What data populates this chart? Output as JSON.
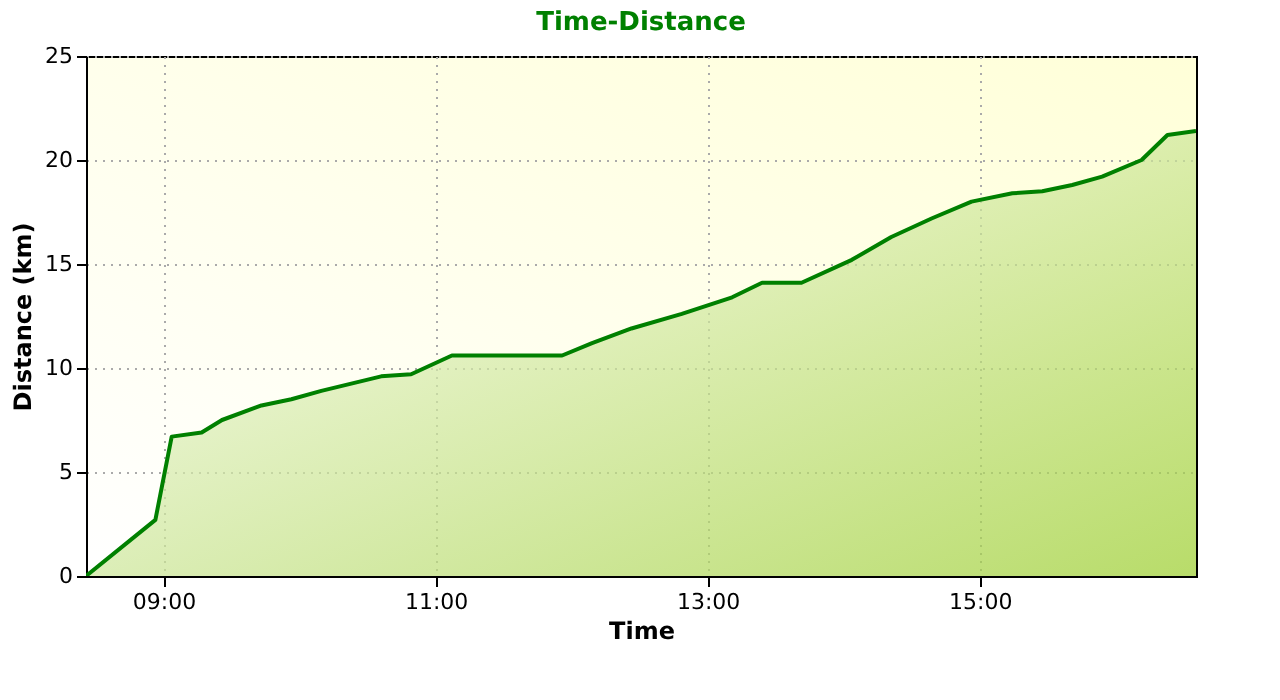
{
  "chart_data": {
    "type": "area",
    "title": "Time-Distance",
    "xlabel": "Time",
    "ylabel": "Distance (km)",
    "x": [
      8.43,
      8.94,
      9.06,
      9.28,
      9.43,
      9.72,
      9.94,
      10.16,
      10.6,
      10.82,
      11.12,
      11.93,
      12.15,
      12.44,
      12.81,
      13.18,
      13.4,
      13.69,
      14.06,
      14.35,
      14.65,
      14.94,
      15.24,
      15.46,
      15.68,
      15.9,
      16.19,
      16.38,
      16.59
    ],
    "series": [
      {
        "color": "#008000",
        "values": [
          0,
          2.7,
          6.7,
          6.9,
          7.5,
          8.2,
          8.5,
          8.9,
          9.6,
          9.7,
          10.6,
          10.6,
          11.2,
          11.9,
          12.6,
          13.4,
          14.1,
          14.1,
          15.2,
          16.3,
          17.2,
          18.0,
          18.4,
          18.5,
          18.8,
          19.2,
          20.0,
          21.2,
          21.4
        ]
      }
    ],
    "xlim": [
      8.43,
      16.59
    ],
    "xticks": [
      {
        "value": 9,
        "label": "09:00"
      },
      {
        "value": 11,
        "label": "11:00"
      },
      {
        "value": 13,
        "label": "13:00"
      },
      {
        "value": 15,
        "label": "15:00"
      }
    ],
    "ylim": [
      0,
      25
    ],
    "yticks": [
      0,
      5,
      10,
      15,
      20,
      25
    ],
    "grid": true
  }
}
